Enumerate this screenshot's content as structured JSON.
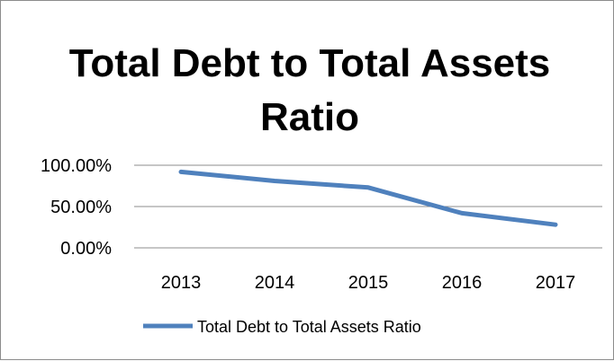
{
  "chart_data": {
    "type": "line",
    "title_lines": [
      "Total Debt to Total Assets",
      "Ratio"
    ],
    "categories": [
      "2013",
      "2014",
      "2015",
      "2016",
      "2017"
    ],
    "series": [
      {
        "name": "Total Debt to Total Assets Ratio",
        "values": [
          0.92,
          0.81,
          0.73,
          0.42,
          0.28
        ],
        "color": "#4f81bd"
      }
    ],
    "y_ticks": [
      "100.00%",
      "50.00%",
      "0.00%"
    ],
    "ylim": [
      0,
      1
    ],
    "grid": true,
    "gridline_color": "#8c8c8c",
    "legend_position": "bottom",
    "xlabel": "",
    "ylabel": ""
  }
}
